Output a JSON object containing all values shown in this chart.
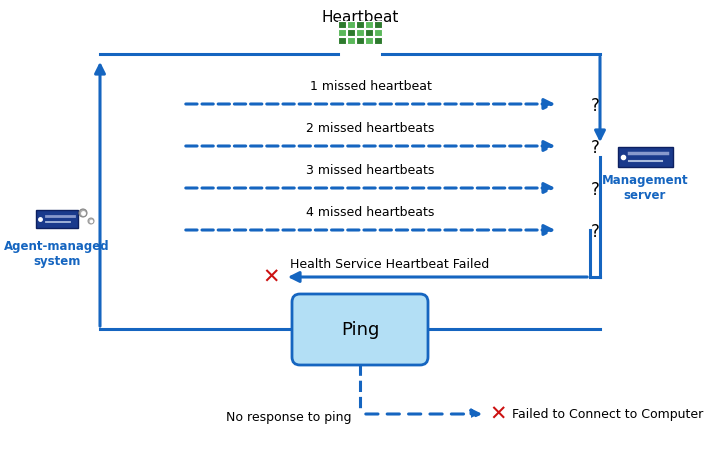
{
  "title": "Heartbeat",
  "bg_color": "#ffffff",
  "blue": "#1565c0",
  "light_blue_fill": "#b3dff5",
  "red": "#cc1111",
  "missed_heartbeats": [
    "1 missed heartbeat",
    "2 missed heartbeats",
    "3 missed heartbeats",
    "4 missed heartbeats"
  ],
  "agent_label": "Agent-managed\nsystem",
  "mgmt_label": "Management\nserver",
  "ping_label": "Ping",
  "health_fail_label": "Health Service Heartbeat Failed",
  "no_response_label": "No response to ping",
  "fail_connect_label": "Failed to Connect to Computer",
  "grid_dark": "#2d7a2d",
  "grid_light": "#5ab85a",
  "lw": 2.2,
  "arrow_lw": 2.5
}
